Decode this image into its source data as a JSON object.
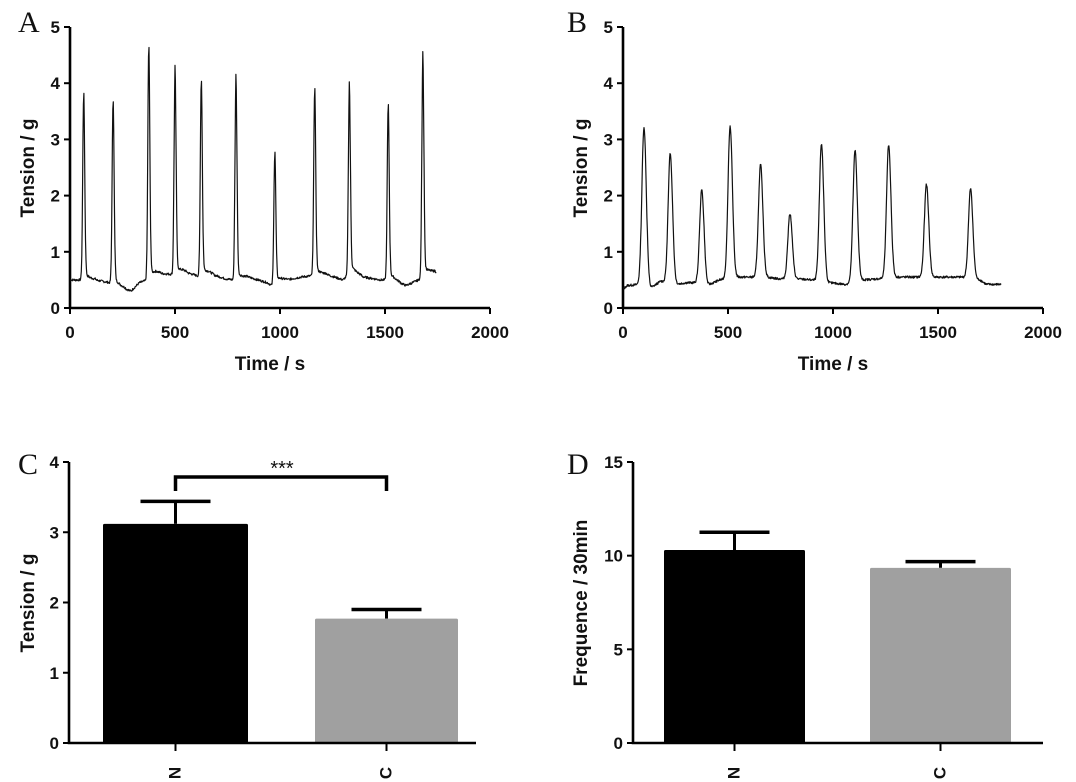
{
  "chart_data": [
    {
      "panel": "A",
      "type": "line",
      "xlabel": "Time / s",
      "ylabel": "Tension / g",
      "xlim": [
        0,
        2000
      ],
      "ylim": [
        0,
        5
      ],
      "xticks": [
        "0",
        "500",
        "1000",
        "1500",
        "2000"
      ],
      "yticks": [
        "0",
        "1",
        "2",
        "3",
        "4",
        "5"
      ],
      "grid": false,
      "baseline": [
        [
          0,
          0.5
        ],
        [
          60,
          0.5
        ],
        [
          120,
          0.5
        ],
        [
          190,
          0.45
        ],
        [
          260,
          0.35
        ],
        [
          290,
          0.3
        ],
        [
          330,
          0.45
        ],
        [
          370,
          0.5
        ],
        [
          410,
          0.62
        ],
        [
          490,
          0.6
        ],
        [
          540,
          0.65
        ],
        [
          610,
          0.57
        ],
        [
          660,
          0.62
        ],
        [
          740,
          0.52
        ],
        [
          780,
          0.5
        ],
        [
          850,
          0.55
        ],
        [
          940,
          0.45
        ],
        [
          970,
          0.38
        ],
        [
          1000,
          0.48
        ],
        [
          1100,
          0.55
        ],
        [
          1160,
          0.58
        ],
        [
          1220,
          0.6
        ],
        [
          1300,
          0.5
        ],
        [
          1340,
          0.65
        ],
        [
          1400,
          0.55
        ],
        [
          1480,
          0.5
        ],
        [
          1540,
          0.5
        ],
        [
          1600,
          0.4
        ],
        [
          1660,
          0.5
        ],
        [
          1700,
          0.62
        ],
        [
          1745,
          0.65
        ]
      ],
      "peaks": [
        {
          "t": 65,
          "v": 3.72
        },
        {
          "t": 205,
          "v": 3.6
        },
        {
          "t": 375,
          "v": 4.57
        },
        {
          "t": 500,
          "v": 4.18
        },
        {
          "t": 625,
          "v": 3.97
        },
        {
          "t": 790,
          "v": 4.02
        },
        {
          "t": 975,
          "v": 2.67
        },
        {
          "t": 1165,
          "v": 3.82
        },
        {
          "t": 1330,
          "v": 3.88
        },
        {
          "t": 1515,
          "v": 3.52
        },
        {
          "t": 1680,
          "v": 4.43
        }
      ]
    },
    {
      "panel": "B",
      "type": "line",
      "xlabel": "Time / s",
      "ylabel": "Tension / g",
      "xlim": [
        0,
        2000
      ],
      "ylim": [
        0,
        5
      ],
      "xticks": [
        "0",
        "500",
        "1000",
        "1500",
        "2000"
      ],
      "yticks": [
        "0",
        "1",
        "2",
        "3",
        "4",
        "5"
      ],
      "grid": false,
      "baseline": [
        [
          0,
          0.33
        ],
        [
          20,
          0.4
        ],
        [
          80,
          0.42
        ],
        [
          130,
          0.35
        ],
        [
          180,
          0.48
        ],
        [
          250,
          0.42
        ],
        [
          300,
          0.45
        ],
        [
          350,
          0.45
        ],
        [
          400,
          0.4
        ],
        [
          460,
          0.5
        ],
        [
          540,
          0.55
        ],
        [
          600,
          0.55
        ],
        [
          680,
          0.55
        ],
        [
          740,
          0.52
        ],
        [
          820,
          0.52
        ],
        [
          900,
          0.5
        ],
        [
          980,
          0.45
        ],
        [
          1060,
          0.42
        ],
        [
          1140,
          0.5
        ],
        [
          1220,
          0.52
        ],
        [
          1300,
          0.55
        ],
        [
          1380,
          0.55
        ],
        [
          1480,
          0.55
        ],
        [
          1560,
          0.55
        ],
        [
          1620,
          0.55
        ],
        [
          1700,
          0.5
        ],
        [
          1730,
          0.42
        ],
        [
          1800,
          0.42
        ]
      ],
      "peaks": [
        {
          "t": 100,
          "v": 3.22
        },
        {
          "t": 225,
          "v": 2.75
        },
        {
          "t": 375,
          "v": 2.1
        },
        {
          "t": 510,
          "v": 3.24
        },
        {
          "t": 655,
          "v": 2.55
        },
        {
          "t": 795,
          "v": 1.68
        },
        {
          "t": 945,
          "v": 2.92
        },
        {
          "t": 1105,
          "v": 2.8
        },
        {
          "t": 1265,
          "v": 2.9
        },
        {
          "t": 1445,
          "v": 2.2
        },
        {
          "t": 1655,
          "v": 2.12
        }
      ]
    },
    {
      "panel": "C",
      "type": "bar",
      "categories": [
        "N",
        "C"
      ],
      "values": [
        3.12,
        1.77
      ],
      "errors": [
        0.32,
        0.13
      ],
      "colors": [
        "#000000",
        "#a0a0a0"
      ],
      "ylabel": "Tension / g",
      "xlabel": "",
      "ylim": [
        0,
        4
      ],
      "yticks": [
        "0",
        "1",
        "2",
        "3",
        "4"
      ],
      "annotation": {
        "text": "***",
        "between": [
          "N",
          "C"
        ]
      },
      "grid": false
    },
    {
      "panel": "D",
      "type": "bar",
      "categories": [
        "N",
        "C"
      ],
      "values": [
        10.3,
        9.35
      ],
      "errors": [
        0.95,
        0.33
      ],
      "colors": [
        "#000000",
        "#a0a0a0"
      ],
      "ylabel": "Frequence / 30min",
      "xlabel": "",
      "ylim": [
        0,
        15
      ],
      "yticks": [
        "0",
        "5",
        "10",
        "15"
      ],
      "grid": false
    }
  ]
}
